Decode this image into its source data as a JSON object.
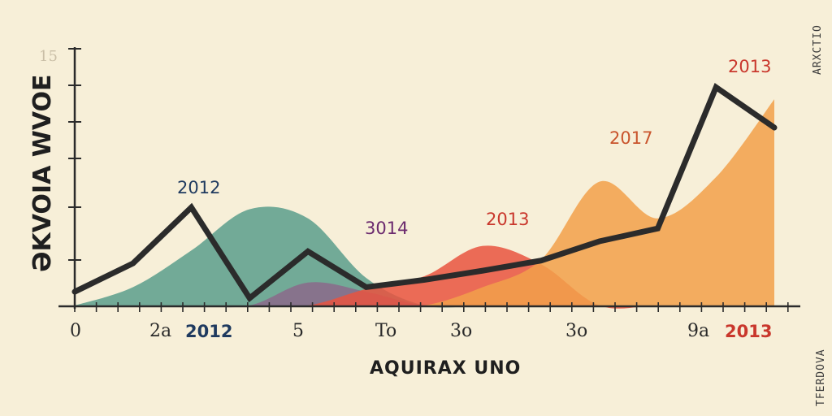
{
  "chart_data": {
    "type": "area",
    "title": "",
    "xlabel": "AQUIRAX UNO",
    "ylabel": "ƏKVOIA WVOE",
    "y_top_tick": "15",
    "x_tick_labels": [
      "0",
      "2a",
      "2012",
      "5",
      "To",
      "3o",
      "3o",
      "9a",
      "2013"
    ],
    "annotations": [
      "2012",
      "3014",
      "2013",
      "2017",
      "2013"
    ],
    "x": [
      0,
      1,
      2,
      3,
      4,
      5,
      6,
      7,
      8,
      9,
      10,
      11,
      12
    ],
    "line_values": [
      1.5,
      4.6,
      10.7,
      0.8,
      5.9,
      2.0,
      2.8,
      3.8,
      4.9,
      7.0,
      8.4,
      23.8,
      19.4
    ],
    "ylim": [
      0,
      28
    ],
    "grid": false,
    "areas": [
      {
        "color": "#5a9e8c",
        "values": [
          0,
          2,
          6,
          10.5,
          9.5,
          3,
          0,
          0,
          0,
          0,
          0,
          0,
          0
        ]
      },
      {
        "color": "#8b6a8a",
        "values": [
          0,
          0,
          0,
          0,
          2.5,
          1.5,
          0,
          0,
          0,
          0,
          0,
          0,
          0
        ]
      },
      {
        "color": "#e9533f",
        "values": [
          0,
          0,
          0,
          0,
          0,
          1.8,
          3.2,
          6.5,
          4.5,
          0,
          0,
          0,
          0
        ]
      },
      {
        "color": "#f2a04a",
        "values": [
          0,
          0,
          0,
          0,
          0,
          0,
          0,
          2,
          5,
          13.5,
          9.5,
          14,
          22.5
        ]
      }
    ],
    "colors": {
      "line": "#2b2b2b",
      "label_navy": "#1f3a5f",
      "label_purple": "#6b2a6e",
      "label_red": "#c9372c",
      "label_orange": "#c9542c"
    }
  },
  "side_text": {
    "top_right": "ARXCTIO",
    "bottom_right": "TFERDOVA"
  }
}
